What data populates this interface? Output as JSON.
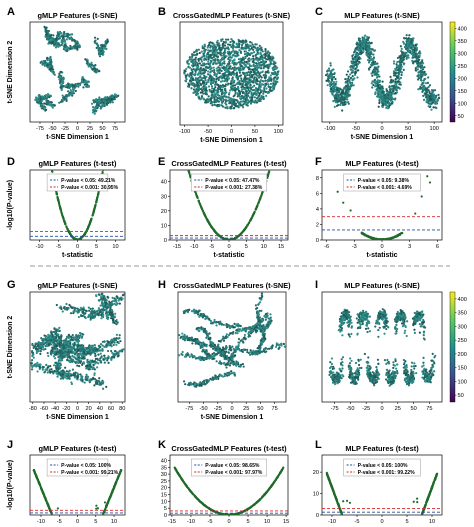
{
  "figure": {
    "colormap": [
      "#440154",
      "#3b528b",
      "#21918c",
      "#5ec962",
      "#fde725"
    ],
    "point_color_main": "#2a7f7c",
    "point_color_volcano": "#1e6b2a",
    "line_red": "#d62728",
    "line_blue": "#1f4ea8",
    "divider_color": "#999999"
  },
  "chart_data": [
    {
      "id": "A",
      "type": "scatter",
      "letter": "A",
      "title": "gMLP Features (t-SNE)",
      "xlabel": "t-SNE Dimension 1",
      "ylabel": "t-SNE Dimension 2",
      "xticks": [
        -75,
        -50,
        -25,
        0,
        25,
        50,
        75
      ],
      "yticks": [],
      "xlim": [
        -95,
        95
      ],
      "ylim": [
        -100,
        100
      ],
      "pattern": "clusters"
    },
    {
      "id": "B",
      "type": "scatter",
      "letter": "B",
      "title": "CrossGatedMLP Features (t-SNE)",
      "xlabel": "t-SNE Dimension 1",
      "ylabel": "",
      "xticks": [
        -100,
        -50,
        0,
        50,
        100
      ],
      "yticks": [],
      "xlim": [
        -110,
        110
      ],
      "ylim": [
        -100,
        100
      ],
      "pattern": "blob"
    },
    {
      "id": "C",
      "type": "scatter",
      "letter": "C",
      "title": "MLP Features (t-SNE)",
      "xlabel": "t-SNE Dimension 1",
      "ylabel": "",
      "xticks": [
        -100,
        -50,
        0,
        50,
        100
      ],
      "yticks": [],
      "xlim": [
        -115,
        115
      ],
      "ylim": [
        -100,
        100
      ],
      "pattern": "snake",
      "colorbar_ticks": [
        50,
        100,
        150,
        200,
        250,
        300,
        350,
        400
      ]
    },
    {
      "id": "D",
      "type": "scatter",
      "letter": "D",
      "title": "gMLP Features (t-test)",
      "xlabel": "t-statistic",
      "ylabel": "-log10(P-value)",
      "xticks": [
        -10,
        -5,
        0,
        5,
        10
      ],
      "yticks": [],
      "xlim": [
        -12.5,
        12.5
      ],
      "ylim": [
        0,
        25
      ],
      "pattern": "volcano",
      "vscale": 0.55,
      "legend": [
        "P-value < 0.05: 49.21%",
        "P-value < 0.001: 30.95%"
      ],
      "hlines": [
        1.3,
        3.0
      ]
    },
    {
      "id": "E",
      "type": "scatter",
      "letter": "E",
      "title": "CrossGatedMLP Features (t-test)",
      "xlabel": "t-statistic",
      "ylabel": "",
      "xticks": [
        -15,
        -10,
        -5,
        0,
        5,
        10,
        15
      ],
      "yticks": [
        0,
        10,
        20,
        30,
        40
      ],
      "xlim": [
        -17,
        17
      ],
      "ylim": [
        0,
        48
      ],
      "pattern": "volcano",
      "vscale": 0.35,
      "legend": [
        "P-value < 0.05: 47.47%",
        "P-value < 0.001: 27.38%"
      ],
      "hlines": [
        1.3,
        3.0
      ]
    },
    {
      "id": "F",
      "type": "scatter",
      "letter": "F",
      "title": "MLP Features (t-test)",
      "xlabel": "t-statistic",
      "ylabel": "",
      "xticks": [
        -6,
        -3,
        0,
        3,
        6
      ],
      "yticks": [
        0,
        2,
        4,
        6,
        8
      ],
      "xlim": [
        -6.5,
        6.5
      ],
      "ylim": [
        0,
        9
      ],
      "pattern": "volcano_f",
      "legend": [
        "P-value < 0.05: 9.38%",
        "P-value < 0.001: 4.69%"
      ],
      "hlines": [
        1.3,
        3.0
      ]
    },
    {
      "id": "G",
      "type": "scatter",
      "letter": "G",
      "title": "gMLP Features (t-SNE)",
      "xlabel": "t-SNE Dimension 1",
      "ylabel": "t-SNE Dimension 2",
      "xticks": [
        -80,
        -60,
        -40,
        -20,
        0,
        20,
        40,
        60,
        80
      ],
      "yticks": [],
      "xlim": [
        -85,
        85
      ],
      "ylim": [
        -100,
        100
      ],
      "pattern": "dense"
    },
    {
      "id": "H",
      "type": "scatter",
      "letter": "H",
      "title": "CrossGatedMLP Features (t-SNE)",
      "xlabel": "t-SNE Dimension 1",
      "ylabel": "",
      "xticks": [
        -75,
        -50,
        -25,
        0,
        25,
        50,
        75
      ],
      "yticks": [],
      "xlim": [
        -95,
        95
      ],
      "ylim": [
        -100,
        100
      ],
      "pattern": "worms"
    },
    {
      "id": "I",
      "type": "scatter",
      "letter": "I",
      "title": "MLP Features (t-SNE)",
      "xlabel": "",
      "ylabel": "",
      "xticks": [
        -75,
        -50,
        -25,
        0,
        25,
        50,
        75
      ],
      "yticks": [],
      "xlim": [
        -95,
        95
      ],
      "ylim": [
        -100,
        100
      ],
      "pattern": "meander",
      "colorbar_ticks": [
        50,
        100,
        150,
        200,
        250,
        300,
        350,
        400
      ]
    },
    {
      "id": "J",
      "type": "scatter",
      "letter": "J",
      "title": "gMLP Features (t-test)",
      "xlabel": "t-statistic",
      "ylabel": "-log10(P-value)",
      "xticks": [
        -10,
        -5,
        0,
        5,
        10
      ],
      "yticks": [],
      "xlim": [
        -13,
        13
      ],
      "ylim": [
        0,
        38
      ],
      "pattern": "volcano_wide",
      "vmin": 7,
      "legend": [
        "P-value < 0.05: 100%",
        "P-value < 0.001: 99.21%"
      ],
      "hlines": [
        1.3,
        3.0
      ]
    },
    {
      "id": "K",
      "type": "scatter",
      "letter": "K",
      "title": "CrossGatedMLP Features (t-test)",
      "xlabel": "",
      "ylabel": "",
      "xticks": [
        -15,
        -10,
        -5,
        0,
        5,
        10,
        15
      ],
      "yticks": [
        0,
        5,
        10,
        15,
        20,
        25,
        30,
        35,
        40
      ],
      "xlim": [
        -15.5,
        15.5
      ],
      "ylim": [
        0,
        44
      ],
      "pattern": "volcano",
      "vscale": 0.17,
      "legend": [
        "P-value < 0.05: 98.65%",
        "P-value < 0.001: 97.97%"
      ],
      "hlines": [
        1.3,
        3.0
      ]
    },
    {
      "id": "L",
      "type": "scatter",
      "letter": "L",
      "title": "MLP Features (t-test)",
      "xlabel": "",
      "ylabel": "",
      "xticks": [
        -10,
        -5,
        0,
        5,
        10
      ],
      "yticks": [
        0,
        10,
        20
      ],
      "xlim": [
        -12,
        12
      ],
      "ylim": [
        0,
        28
      ],
      "pattern": "volcano_wide",
      "vmin": 8,
      "legend": [
        "P-value < 0.05: 100%",
        "P-value < 0.001: 99.22%"
      ],
      "hlines": [
        1.3,
        3.0
      ]
    }
  ]
}
